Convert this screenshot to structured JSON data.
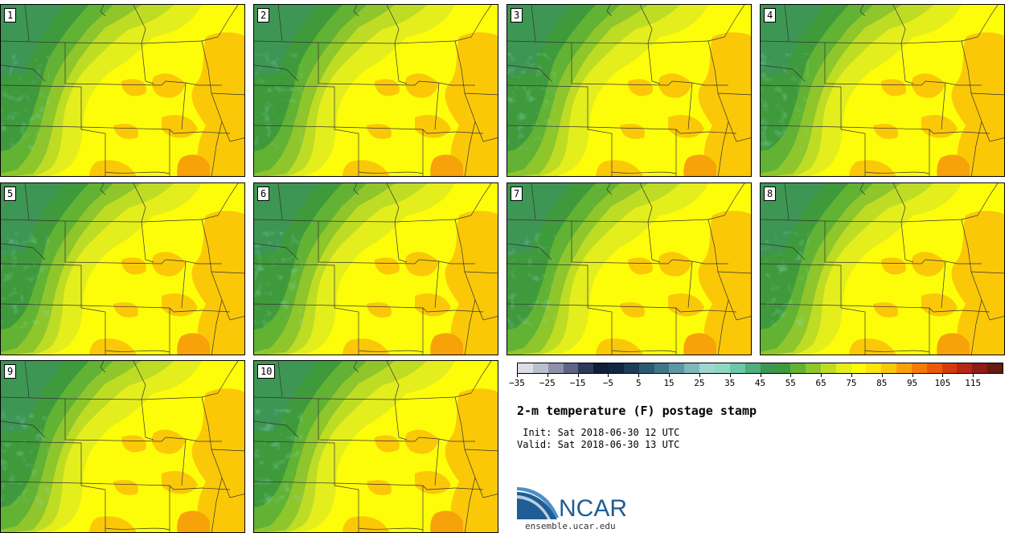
{
  "figure": {
    "title": "2-m temperature (F) postage stamp",
    "init_label": " Init: Sat 2018-06-30 12 UTC",
    "valid_label": "Valid: Sat 2018-06-30 13 UTC"
  },
  "members": [
    "1",
    "2",
    "3",
    "4",
    "5",
    "6",
    "7",
    "8",
    "9",
    "10"
  ],
  "colorbar": {
    "colors": [
      "#dcdee6",
      "#bcbfcd",
      "#8e92a8",
      "#5d6484",
      "#2e3a5c",
      "#121d38",
      "#0f2645",
      "#1c3c58",
      "#2c5a72",
      "#3d7888",
      "#5c98a4",
      "#7fb8bc",
      "#9fd6d0",
      "#8fd8c8",
      "#6cc8a6",
      "#4fae7c",
      "#3e9654",
      "#3f9a3c",
      "#62b234",
      "#8ec62c",
      "#bedc24",
      "#e4ee1c",
      "#fdfd0a",
      "#fce40c",
      "#fbc808",
      "#f8a20a",
      "#f47c08",
      "#ec5a08",
      "#d63a0c",
      "#b42814",
      "#8c1c14",
      "#621c10"
    ],
    "tick_labels": [
      "−35",
      "−25",
      "−15",
      "−5",
      "5",
      "15",
      "25",
      "35",
      "45",
      "55",
      "65",
      "75",
      "85",
      "95",
      "105",
      "115"
    ]
  },
  "logo": {
    "name": "NCAR",
    "url": "ensemble.ucar.edu"
  }
}
